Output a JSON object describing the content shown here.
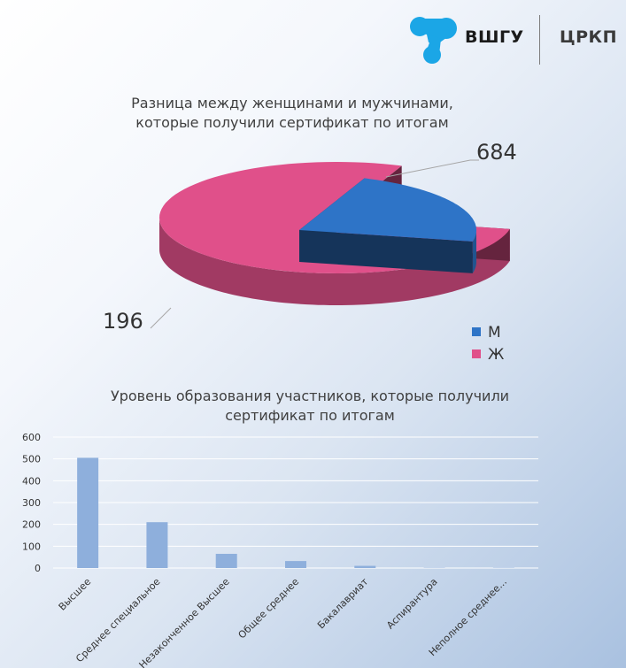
{
  "brand": {
    "name": "ВШГУ",
    "unit": "ЦРКП",
    "logo_color": "#1ba6e6"
  },
  "pie": {
    "title_line1": "Разница между женщинами и мужчинами,",
    "title_line2": "которые получили сертификат по итогам"
  },
  "bar": {
    "title_line1": "Уровень образования участников, которые получили",
    "title_line2": "сертификат по итогам"
  },
  "chart_data": [
    {
      "type": "pie",
      "style": "3d-exploded",
      "categories": [
        "М",
        "Ж"
      ],
      "values": [
        196,
        684
      ],
      "colors": [
        "#2e74c7",
        "#e0508a"
      ],
      "title": "Разница между женщинами и мужчинами, которые получили сертификат по итогам",
      "data_labels": [
        "196",
        "684"
      ],
      "legend": "right"
    },
    {
      "type": "bar",
      "categories": [
        "Высшее",
        "Среднее специальное",
        "Незаконченное Высшее",
        "Общее среднее",
        "Бакалавриат",
        "Аспирантура",
        "Неполное среднее..."
      ],
      "values": [
        505,
        210,
        65,
        32,
        10,
        1,
        1
      ],
      "title": "Уровень образования участников, которые получили сертификат по итогам",
      "xlabel": "",
      "ylabel": "",
      "ylim": [
        0,
        600
      ],
      "yticks": [
        0,
        100,
        200,
        300,
        400,
        500,
        600
      ],
      "grid": true,
      "bar_color": "#8eafdc"
    }
  ]
}
